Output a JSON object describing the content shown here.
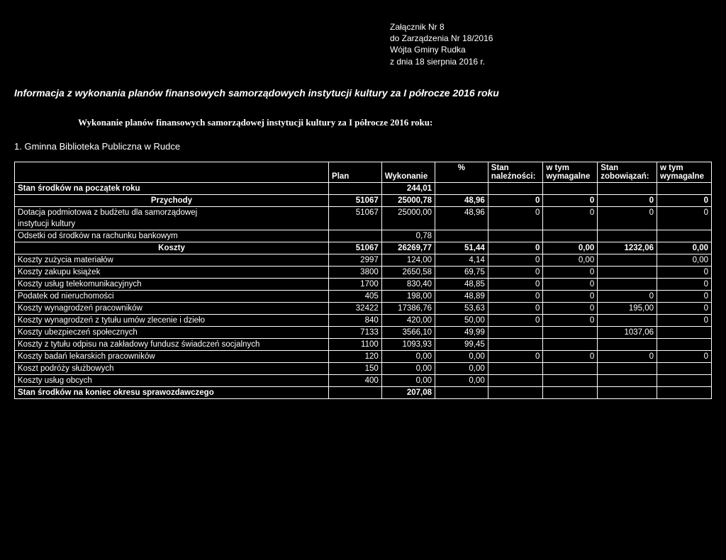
{
  "header": {
    "l1": "Załącznik Nr 8",
    "l2": "do Zarządzenia Nr 18/2016",
    "l3": "Wójta Gminy Rudka",
    "l4": "z dnia 18 sierpnia 2016 r."
  },
  "titles": {
    "main": "Informacja z wykonania planów finansowych samorządowych instytucji kultury za I półrocze 2016 roku",
    "sub": "Wykonanie planów finansowych samorządowej instytucji kultury za I półrocze 2016 roku:",
    "item": "1. Gminna Biblioteka Publiczna w Rudce"
  },
  "colhead": {
    "plan": "Plan",
    "wyk": "Wykonanie",
    "pct": "%",
    "stan_nal": "Stan należności:",
    "wtym1": "w tym wymagalne",
    "stan_zob": "Stan zobowiązań:",
    "wtym2": "w tym wymagalne"
  },
  "rows": {
    "r0": {
      "label": "Stan środków na początek roku",
      "wyk": "244,01"
    },
    "r1": {
      "label": "Przychody",
      "plan": "51067",
      "wyk": "25000,78",
      "pct": "48,96",
      "c1": "0",
      "c2": "0",
      "c3": "0",
      "c4": "0"
    },
    "r2a": {
      "label": "Dotacja podmiotowa z budżetu dla samorządowej",
      "plan": "51067",
      "wyk": "25000,00",
      "pct": "48,96",
      "c1": "0",
      "c2": "0",
      "c3": "0",
      "c4": "0"
    },
    "r2b": {
      "label": "instytucji kultury"
    },
    "r3": {
      "label": "Odsetki od środków na rachunku bankowym",
      "wyk": "0,78"
    },
    "r4": {
      "label": "Koszty",
      "plan": "51067",
      "wyk": "26269,77",
      "pct": "51,44",
      "c1": "0",
      "c2": "0,00",
      "c3": "1232,06",
      "c4": "0,00"
    },
    "r5": {
      "label": "Koszty zużycia materiałów",
      "plan": "2997",
      "wyk": "124,00",
      "pct": "4,14",
      "c1": "0",
      "c2": "0,00",
      "c3": "",
      "c4": "0,00"
    },
    "r6": {
      "label": "Koszty zakupu książek",
      "plan": "3800",
      "wyk": "2650,58",
      "pct": "69,75",
      "c1": "0",
      "c2": "0",
      "c3": "",
      "c4": "0"
    },
    "r7": {
      "label": "Koszty usług telekomunikacyjnych",
      "plan": "1700",
      "wyk": "830,40",
      "pct": "48,85",
      "c1": "0",
      "c2": "0",
      "c3": "",
      "c4": "0"
    },
    "r8": {
      "label": "Podatek od nieruchomości",
      "plan": "405",
      "wyk": "198,00",
      "pct": "48,89",
      "c1": "0",
      "c2": "0",
      "c3": "0",
      "c4": "0"
    },
    "r9": {
      "label": "Koszty wynagrodzeń pracowników",
      "plan": "32422",
      "wyk": "17386,76",
      "pct": "53,63",
      "c1": "0",
      "c2": "0",
      "c3": "195,00",
      "c4": "0"
    },
    "r10": {
      "label": "Koszty wynagrodzeń z tytułu umów zlecenie i dzieło",
      "plan": "840",
      "wyk": "420,00",
      "pct": "50,00",
      "c1": "0",
      "c2": "0",
      "c3": "",
      "c4": "0"
    },
    "r11": {
      "label": "Koszty ubezpieczeń społecznych",
      "plan": "7133",
      "wyk": "3566,10",
      "pct": "49,99",
      "c1": "",
      "c2": "",
      "c3": "1037,06",
      "c4": ""
    },
    "r12": {
      "label": "Koszty z tytułu odpisu na zakładowy fundusz świadczeń socjalnych",
      "plan": "1100",
      "wyk": "1093,93",
      "pct": "99,45",
      "c1": "",
      "c2": "",
      "c3": "",
      "c4": ""
    },
    "r13": {
      "label": "Koszty badań lekarskich pracowników",
      "plan": "120",
      "wyk": "0,00",
      "pct": "0,00",
      "c1": "0",
      "c2": "0",
      "c3": "0",
      "c4": "0"
    },
    "r14": {
      "label": "Koszt podróży służbowych",
      "plan": "150",
      "wyk": "0,00",
      "pct": "0,00",
      "c1": "",
      "c2": "",
      "c3": "",
      "c4": ""
    },
    "r15": {
      "label": "Koszty usług obcych",
      "plan": "400",
      "wyk": "0,00",
      "pct": "0,00",
      "c1": "",
      "c2": "",
      "c3": "",
      "c4": ""
    },
    "r16": {
      "label": "Stan środków na koniec okresu sprawozdawczego",
      "wyk": "207,08"
    }
  }
}
